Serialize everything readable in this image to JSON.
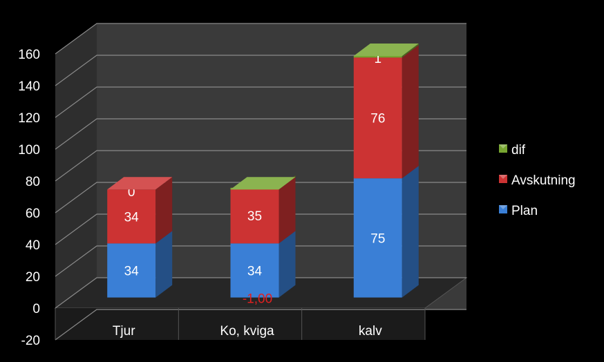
{
  "chart_data": {
    "type": "bar",
    "stacked": true,
    "three_d": true,
    "categories": [
      "Tjur",
      "Ko, kviga",
      "kalv"
    ],
    "series": [
      {
        "name": "Plan",
        "color": "#3a7fd6",
        "values": [
          34,
          34,
          75
        ]
      },
      {
        "name": "Avskutning",
        "color": "#cc3333",
        "values": [
          34,
          35,
          76
        ]
      },
      {
        "name": "dif",
        "color": "#77a531",
        "values": [
          0,
          -1,
          1
        ]
      }
    ],
    "data_labels": [
      [
        "34",
        "34",
        "75"
      ],
      [
        "34",
        "35",
        "76"
      ],
      [
        "0",
        "-1,00",
        "1"
      ]
    ],
    "data_label_colors": {
      "Plan": "#ffffff",
      "Avskutning": "#ffffff",
      "dif_negative": "#e02020",
      "dif_positive": "#ffffff"
    },
    "yticks": [
      "-20",
      "0",
      "20",
      "40",
      "60",
      "80",
      "100",
      "120",
      "140",
      "160"
    ],
    "ylim": [
      -20,
      160
    ],
    "grid": true,
    "legend_position": "right",
    "legend_order": [
      "dif",
      "Avskutning",
      "Plan"
    ],
    "background": "#000000",
    "wall_color": "#3a3a3a",
    "floor_color": "#262626"
  }
}
